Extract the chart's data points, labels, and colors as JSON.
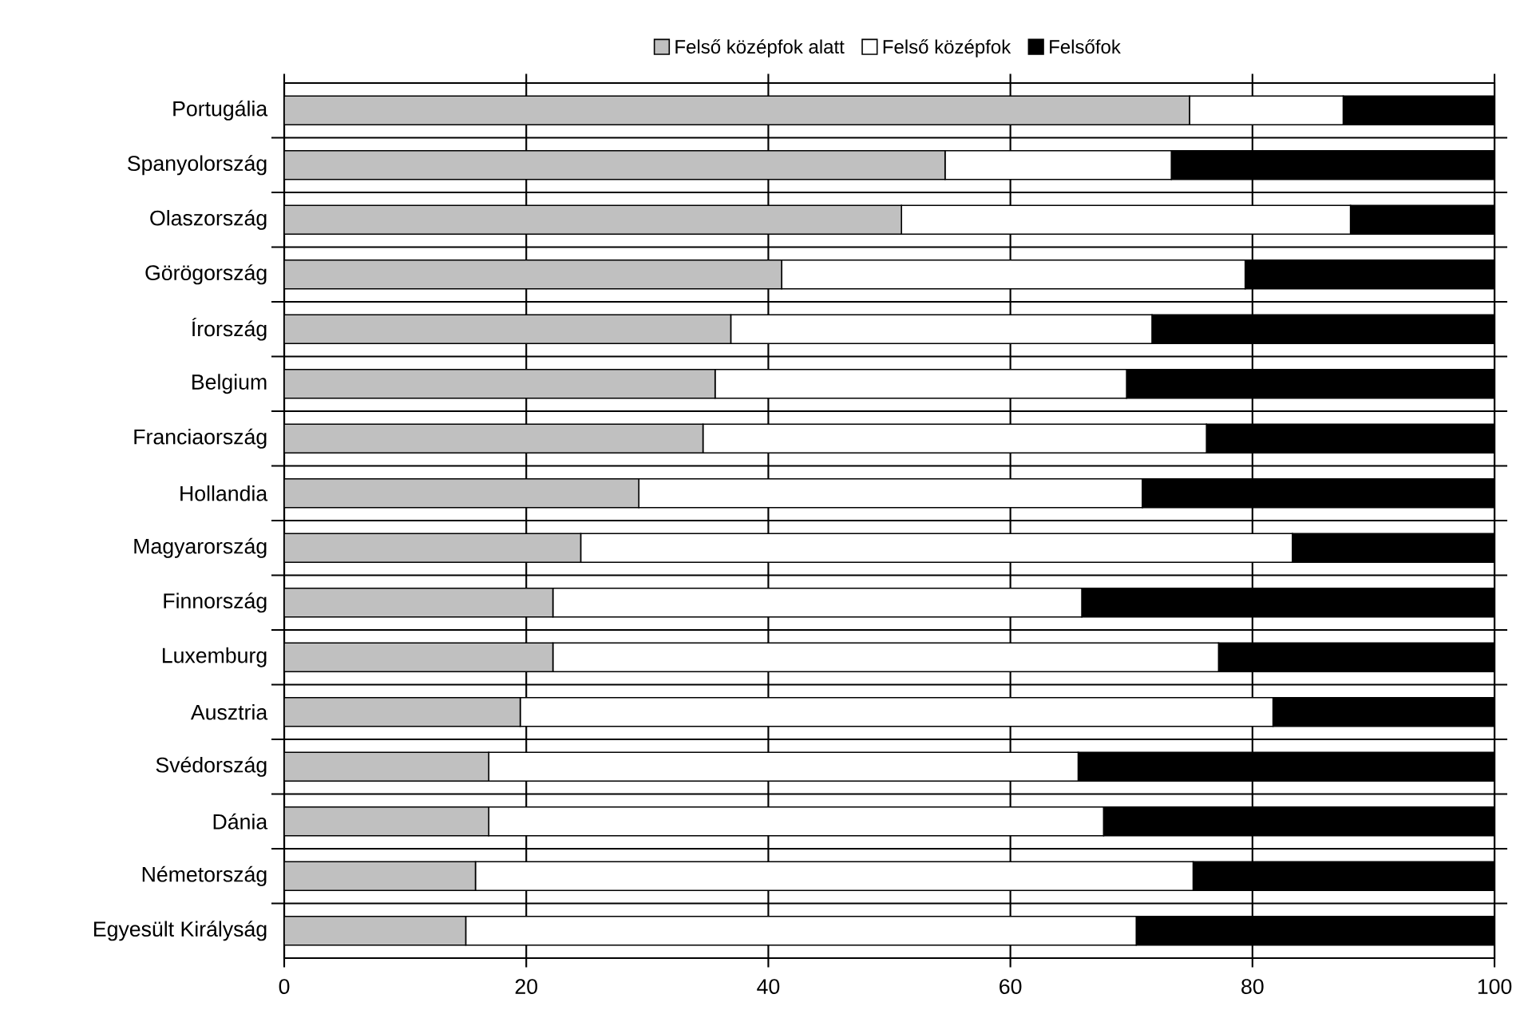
{
  "chart_data": {
    "type": "bar",
    "orientation": "horizontal",
    "stacked": true,
    "grid": true,
    "legend": "top",
    "categories": [
      "Portugália",
      "Spanyolország",
      "Olaszország",
      "Görögország",
      "Írország",
      "Belgium",
      "Franciaország",
      "Hollandia",
      "Magyarország",
      "Finnország",
      "Luxemburg",
      "Ausztria",
      "Svédország",
      "Dánia",
      "Németország",
      "Egyesült Királyság"
    ],
    "series": [
      {
        "name": "Felső középfok alatt",
        "color": "#c0c0c0",
        "values": [
          74.8,
          54.6,
          51.0,
          41.1,
          36.9,
          35.6,
          34.6,
          29.3,
          24.5,
          22.2,
          22.2,
          19.5,
          16.9,
          16.9,
          15.8,
          15.0
        ]
      },
      {
        "name": "Felső középfok",
        "color": "#ffffff",
        "values": [
          12.7,
          18.7,
          37.1,
          38.3,
          34.8,
          34.0,
          41.6,
          41.6,
          58.8,
          43.7,
          55.0,
          62.2,
          48.7,
          50.8,
          59.3,
          55.4
        ]
      },
      {
        "name": "Felsőfok",
        "color": "#000000",
        "values": [
          12.5,
          26.7,
          11.9,
          20.6,
          28.3,
          30.4,
          23.8,
          29.1,
          16.7,
          34.1,
          22.8,
          18.3,
          34.4,
          32.3,
          24.9,
          29.6
        ]
      }
    ],
    "xlim": [
      0,
      100
    ],
    "xticks": [
      0,
      20,
      40,
      60,
      80,
      100
    ]
  }
}
